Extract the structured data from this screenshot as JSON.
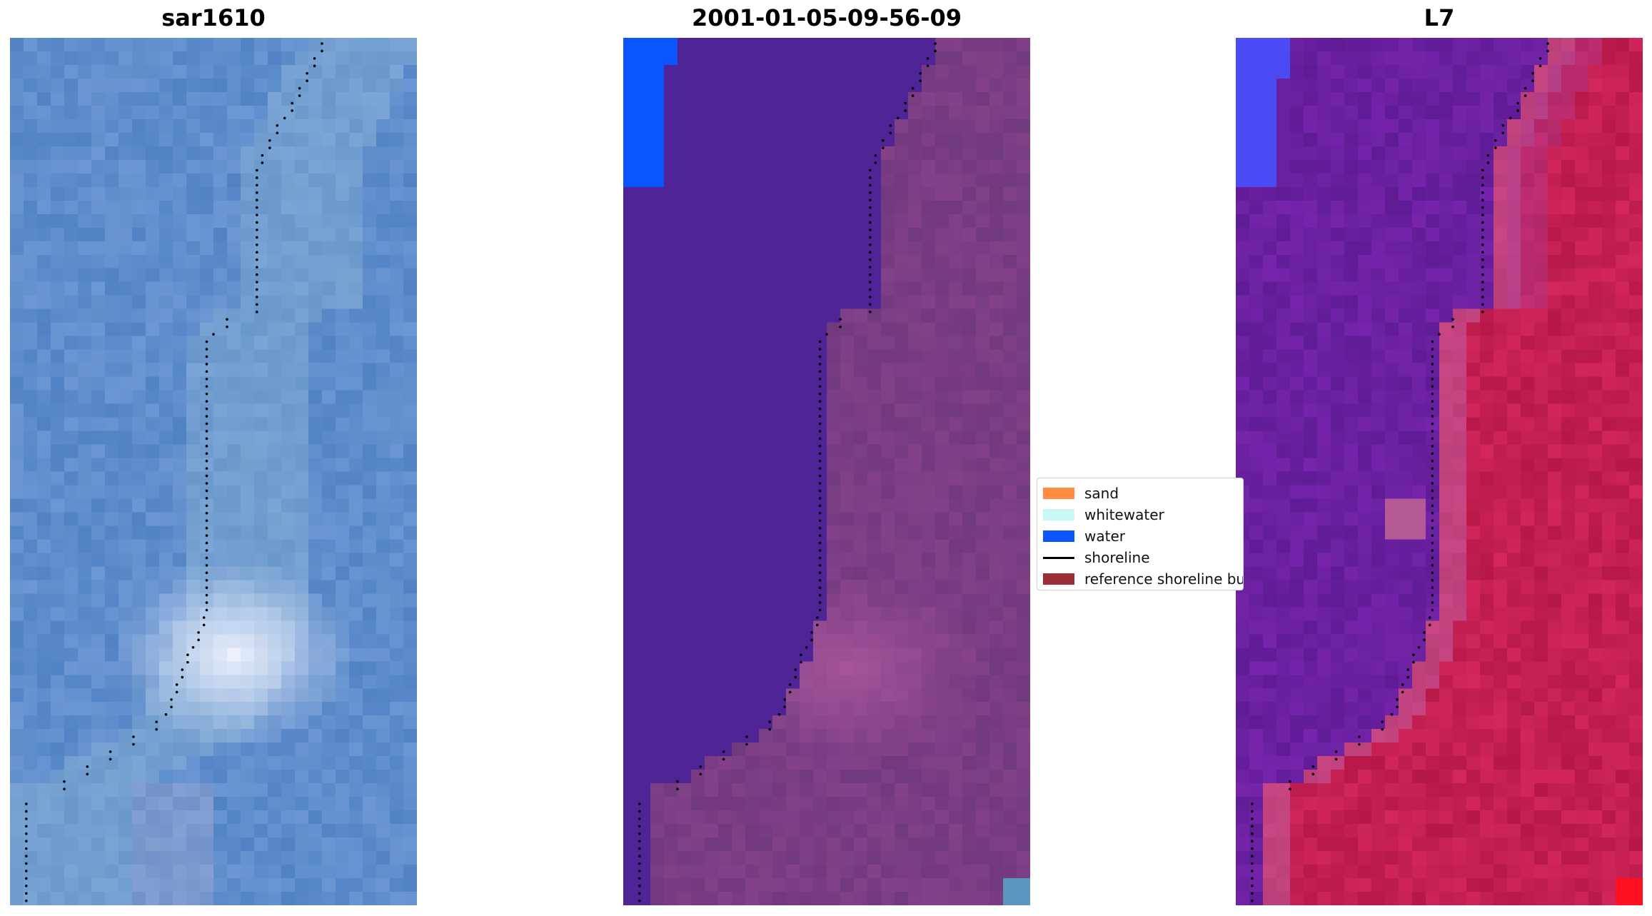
{
  "panels": [
    {
      "title": "sar1610",
      "palette": "sar"
    },
    {
      "title": "2001-01-05-09-56-09",
      "palette": "class"
    },
    {
      "title": "L7",
      "palette": "l7"
    }
  ],
  "legend": {
    "items": [
      {
        "label": "sand",
        "kind": "patch",
        "color": "#ff8c40"
      },
      {
        "label": "whitewater",
        "kind": "patch",
        "color": "#c8f8f8"
      },
      {
        "label": "water",
        "kind": "patch",
        "color": "#0a55ff"
      },
      {
        "label": "shoreline",
        "kind": "line",
        "color": "#000000"
      },
      {
        "label": "reference shoreline buffer",
        "kind": "patch",
        "color": "#9a2d36"
      }
    ]
  },
  "colors": {
    "sar_water": "#5e8dcc",
    "sar_white": "#f2f4ff",
    "class_water": "#4f2496",
    "class_land": "#7a3d83",
    "class_pink": "#b05aa0",
    "l7_water": "#6a20a0",
    "l7_land": "#c41f52",
    "blue_corner": "#0a55ff",
    "red_corner": "#ff1020"
  }
}
